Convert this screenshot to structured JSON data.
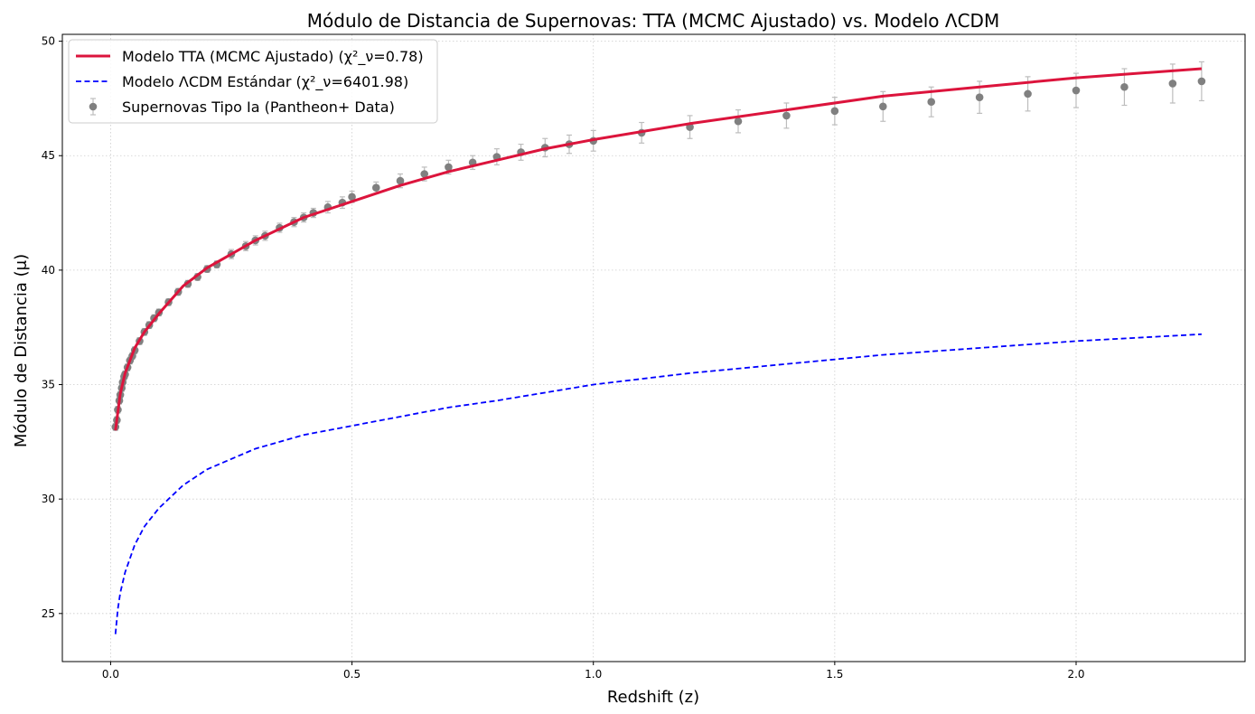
{
  "chart_data": {
    "type": "scatter",
    "title": "Módulo de Distancia de Supernovas: TTA (MCMC Ajustado) vs. Modelo ΛCDM",
    "xlabel": "Redshift (z)",
    "ylabel": "Módulo de Distancia (μ)",
    "xlim": [
      -0.1,
      2.35
    ],
    "ylim": [
      22.9,
      50.3
    ],
    "xticks": [
      0.0,
      0.5,
      1.0,
      1.5,
      2.0
    ],
    "xtick_labels": [
      "0.0",
      "0.5",
      "1.0",
      "1.5",
      "2.0"
    ],
    "yticks": [
      25,
      30,
      35,
      40,
      45,
      50
    ],
    "ytick_labels": [
      "25",
      "30",
      "35",
      "40",
      "45",
      "50"
    ],
    "grid": true,
    "legend_position": "top-left",
    "series": [
      {
        "name": "Modelo TTA (MCMC Ajustado) (χ²_ν=0.78)",
        "kind": "line",
        "color": "#dc143c",
        "style": "solid",
        "x": [
          0.01,
          0.02,
          0.03,
          0.05,
          0.07,
          0.1,
          0.15,
          0.2,
          0.3,
          0.4,
          0.5,
          0.6,
          0.7,
          0.8,
          0.9,
          1.0,
          1.2,
          1.4,
          1.6,
          1.8,
          2.0,
          2.26
        ],
        "y": [
          33.0,
          34.6,
          35.5,
          36.6,
          37.3,
          38.1,
          39.3,
          40.1,
          41.3,
          42.3,
          43.0,
          43.7,
          44.3,
          44.8,
          45.3,
          45.7,
          46.4,
          47.0,
          47.6,
          48.0,
          48.4,
          48.8
        ]
      },
      {
        "name": "Modelo ΛCDM Estándar (χ²_ν=6401.98)",
        "kind": "line",
        "color": "#0000ff",
        "style": "dashed",
        "x": [
          0.01,
          0.015,
          0.02,
          0.03,
          0.05,
          0.07,
          0.1,
          0.15,
          0.2,
          0.3,
          0.4,
          0.5,
          0.6,
          0.7,
          0.8,
          1.0,
          1.2,
          1.4,
          1.6,
          1.8,
          2.0,
          2.26
        ],
        "y": [
          24.1,
          25.2,
          25.9,
          26.8,
          28.0,
          28.8,
          29.6,
          30.6,
          31.3,
          32.2,
          32.8,
          33.2,
          33.6,
          34.0,
          34.3,
          35.0,
          35.5,
          35.9,
          36.3,
          36.6,
          36.9,
          37.2
        ]
      },
      {
        "name": "Supernovas Tipo Ia (Pantheon+ Data)",
        "kind": "errorbar",
        "color": "#808080",
        "x": [
          0.01,
          0.013,
          0.015,
          0.018,
          0.02,
          0.023,
          0.025,
          0.028,
          0.03,
          0.035,
          0.04,
          0.045,
          0.05,
          0.06,
          0.07,
          0.08,
          0.09,
          0.1,
          0.12,
          0.14,
          0.16,
          0.18,
          0.2,
          0.22,
          0.25,
          0.28,
          0.3,
          0.32,
          0.35,
          0.38,
          0.4,
          0.42,
          0.45,
          0.48,
          0.5,
          0.55,
          0.6,
          0.65,
          0.7,
          0.75,
          0.8,
          0.85,
          0.9,
          0.95,
          1.0,
          1.1,
          1.2,
          1.3,
          1.4,
          1.5,
          1.6,
          1.7,
          1.8,
          1.9,
          2.0,
          2.1,
          2.2,
          2.26
        ],
        "y": [
          33.15,
          33.45,
          33.9,
          34.3,
          34.55,
          34.85,
          35.1,
          35.35,
          35.45,
          35.75,
          36.05,
          36.25,
          36.5,
          36.9,
          37.3,
          37.6,
          37.9,
          38.15,
          38.6,
          39.05,
          39.4,
          39.7,
          40.05,
          40.25,
          40.7,
          41.05,
          41.3,
          41.5,
          41.85,
          42.1,
          42.3,
          42.5,
          42.75,
          42.95,
          43.2,
          43.6,
          43.9,
          44.2,
          44.5,
          44.7,
          44.95,
          45.15,
          45.35,
          45.5,
          45.65,
          46.0,
          46.25,
          46.5,
          46.75,
          46.95,
          47.15,
          47.35,
          47.55,
          47.7,
          47.85,
          48.0,
          48.15,
          48.25
        ],
        "err": [
          0.15,
          0.15,
          0.15,
          0.15,
          0.15,
          0.15,
          0.15,
          0.15,
          0.15,
          0.15,
          0.15,
          0.15,
          0.15,
          0.15,
          0.15,
          0.15,
          0.15,
          0.15,
          0.15,
          0.15,
          0.15,
          0.15,
          0.15,
          0.15,
          0.2,
          0.2,
          0.2,
          0.2,
          0.2,
          0.2,
          0.2,
          0.2,
          0.25,
          0.25,
          0.25,
          0.25,
          0.3,
          0.3,
          0.3,
          0.3,
          0.35,
          0.35,
          0.4,
          0.4,
          0.45,
          0.45,
          0.5,
          0.5,
          0.55,
          0.6,
          0.65,
          0.65,
          0.7,
          0.75,
          0.75,
          0.8,
          0.85,
          0.85
        ]
      }
    ]
  }
}
